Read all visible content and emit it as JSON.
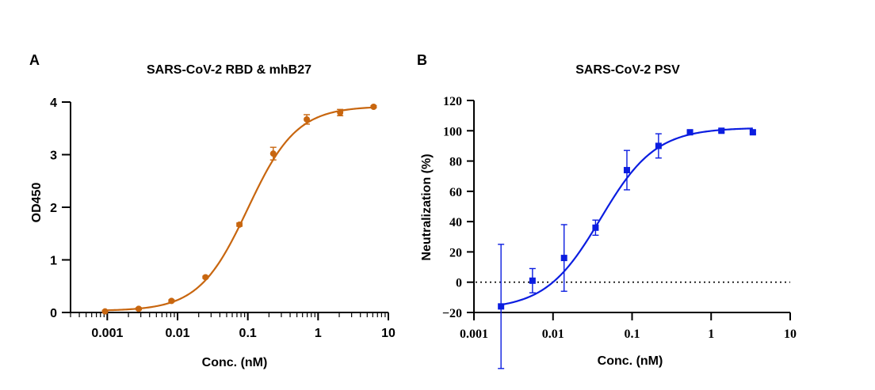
{
  "chart_data": [
    {
      "type": "scatter",
      "panel_label": "A",
      "title": "SARS-CoV-2 RBD & mhB27",
      "xlabel": "Conc. (nM)",
      "ylabel": "OD450",
      "x_scale": "log",
      "xlim": [
        0.0003,
        10
      ],
      "ylim": [
        0,
        4
      ],
      "x_ticks": [
        0.001,
        0.01,
        0.1,
        1,
        10
      ],
      "x_tick_labels": [
        "0.001",
        "0.01",
        "0.1",
        "1",
        "10"
      ],
      "y_ticks": [
        0,
        1,
        2,
        3,
        4
      ],
      "y_tick_labels": [
        "0",
        "1",
        "2",
        "3",
        "4"
      ],
      "reference_line_y": 0,
      "color": "#c8660f",
      "marker": "circle",
      "grid": false,
      "series": [
        {
          "x": [
            0.00093,
            0.0028,
            0.0082,
            0.025,
            0.076,
            0.23,
            0.69,
            2.06,
            6.17
          ],
          "y": [
            0.02,
            0.07,
            0.22,
            0.67,
            1.67,
            3.02,
            3.67,
            3.8,
            3.91
          ],
          "error": [
            0.02,
            0.02,
            0.02,
            0.02,
            0.03,
            0.12,
            0.09,
            0.06,
            0.02
          ]
        }
      ],
      "fit": {
        "bottom": 0.03,
        "top": 3.92,
        "ec50": 0.1,
        "hill": 1.25
      }
    },
    {
      "type": "scatter",
      "panel_label": "B",
      "title": "SARS-CoV-2 PSV",
      "xlabel": "Conc. (nM)",
      "ylabel": "Neutralization (%)",
      "x_scale": "log",
      "xlim": [
        0.001,
        10
      ],
      "ylim": [
        -20,
        120
      ],
      "x_ticks": [
        0.001,
        0.01,
        0.1,
        1,
        10
      ],
      "x_tick_labels": [
        "0.001",
        "0.01",
        "0.1",
        "1",
        "10"
      ],
      "y_ticks": [
        -20,
        0,
        20,
        40,
        60,
        80,
        100,
        120
      ],
      "y_tick_labels": [
        "−20",
        "0",
        "20",
        "40",
        "60",
        "80",
        "100",
        "120"
      ],
      "reference_line_y": 0,
      "color": "#0b1de0",
      "marker": "square",
      "grid": false,
      "series": [
        {
          "x": [
            0.0022,
            0.0055,
            0.0138,
            0.0345,
            0.086,
            0.216,
            0.54,
            1.35,
            3.37
          ],
          "y": [
            -16,
            1,
            16,
            36,
            74,
            90,
            99,
            100,
            99
          ],
          "error": [
            41,
            8,
            22,
            5,
            13,
            8,
            1,
            1,
            1
          ]
        }
      ],
      "fit": {
        "bottom": -18,
        "top": 102,
        "ec50": 0.04,
        "hill": 1.25
      }
    }
  ]
}
